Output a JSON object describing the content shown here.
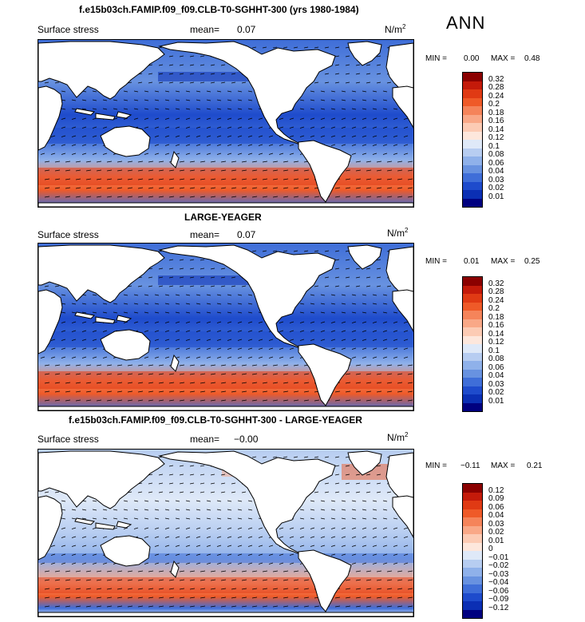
{
  "season": "ANN",
  "panels": [
    {
      "title": "f.e15b03ch.FAMIP.f09_f09.CLB-T0-SGHHT-300 (yrs 1980-1984)",
      "field": "Surface stress",
      "mean_label": "mean=",
      "mean": "0.07",
      "units": "N/m",
      "units_sup": "2",
      "min_label": "MIN =",
      "min": "0.00",
      "max_label": "MAX =",
      "max": "0.48",
      "levels": [
        "0.32",
        "0.28",
        "0.24",
        "0.2",
        "0.18",
        "0.16",
        "0.14",
        "0.12",
        "0.1",
        "0.08",
        "0.06",
        "0.04",
        "0.03",
        "0.02",
        "0.01"
      ],
      "colors": [
        "#8b0000",
        "#c41a0a",
        "#e03a14",
        "#ef5a28",
        "#f5845a",
        "#f9a887",
        "#fccbb4",
        "#fde7dc",
        "#dfe9f8",
        "#b7cdf1",
        "#8fb1ea",
        "#6892e0",
        "#3f6ed8",
        "#1e4bcc",
        "#0b2fb4",
        "#000080"
      ],
      "map_style": "full"
    },
    {
      "title": "LARGE-YEAGER",
      "field": "Surface stress",
      "mean_label": "mean=",
      "mean": "0.07",
      "units": "N/m",
      "units_sup": "2",
      "min_label": "MIN =",
      "min": "0.01",
      "max_label": "MAX =",
      "max": "0.25",
      "levels": [
        "0.32",
        "0.28",
        "0.24",
        "0.2",
        "0.18",
        "0.16",
        "0.14",
        "0.12",
        "0.1",
        "0.08",
        "0.06",
        "0.04",
        "0.03",
        "0.02",
        "0.01"
      ],
      "colors": [
        "#8b0000",
        "#c41a0a",
        "#e03a14",
        "#ef5a28",
        "#f5845a",
        "#f9a887",
        "#fccbb4",
        "#fde7dc",
        "#dfe9f8",
        "#b7cdf1",
        "#8fb1ea",
        "#6892e0",
        "#3f6ed8",
        "#1e4bcc",
        "#0b2fb4",
        "#000080"
      ],
      "map_style": "full"
    },
    {
      "title": "f.e15b03ch.FAMIP.f09_f09.CLB-T0-SGHHT-300 - LARGE-YEAGER",
      "field": "Surface stress",
      "mean_label": "mean=",
      "mean": "−0.00",
      "units": "N/m",
      "units_sup": "2",
      "min_label": "MIN =",
      "min": "−0.11",
      "max_label": "MAX =",
      "max": "0.21",
      "levels": [
        "0.12",
        "0.09",
        "0.06",
        "0.04",
        "0.03",
        "0.02",
        "0.01",
        "0",
        "−0.01",
        "−0.02",
        "−0.03",
        "−0.04",
        "−0.06",
        "−0.09",
        "−0.12"
      ],
      "colors": [
        "#8b0000",
        "#c41a0a",
        "#e03a14",
        "#ef5a28",
        "#f5845a",
        "#f9a887",
        "#fccbb4",
        "#fde7dc",
        "#dfe9f8",
        "#b7cdf1",
        "#8fb1ea",
        "#6892e0",
        "#3f6ed8",
        "#1e4bcc",
        "#0b2fb4",
        "#000080"
      ],
      "map_style": "diff"
    }
  ]
}
